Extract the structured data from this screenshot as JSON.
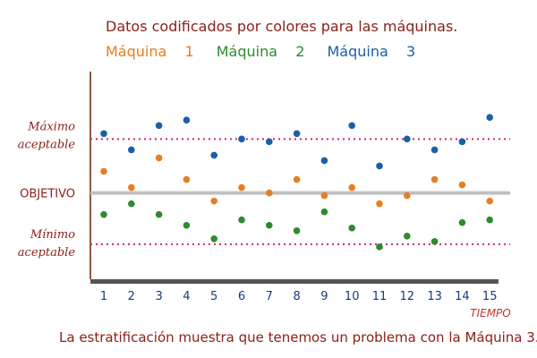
{
  "chart_data": {
    "type": "scatter",
    "title": "Datos codificados por colores para las máquinas.",
    "caption": "La estratificación muestra que tenemos un problema con la Máquina 3.",
    "xlabel": "TIEMPO",
    "x": [
      1,
      2,
      3,
      4,
      5,
      6,
      7,
      8,
      9,
      10,
      11,
      12,
      13,
      14,
      15
    ],
    "reference_lines": {
      "max_label_1": "Máximo",
      "max_label_2": "aceptable",
      "max_value": 70,
      "target_label": "OBJETIVO",
      "target_value": 50,
      "min_label_1": "Mínimo",
      "min_label_2": "aceptable",
      "min_value": 31
    },
    "ylim": [
      18,
      95
    ],
    "series": [
      {
        "name": "Máquina 1",
        "legend_suffix": "1",
        "legend_prefix": "Máquina",
        "color": "#e67e22",
        "values": [
          58,
          52,
          63,
          55,
          47,
          52,
          50,
          55,
          49,
          52,
          46,
          49,
          55,
          53,
          47
        ]
      },
      {
        "name": "Máquina 2",
        "legend_suffix": "2",
        "legend_prefix": "Máquina",
        "color": "#2e8b2e",
        "values": [
          42,
          46,
          42,
          38,
          33,
          40,
          38,
          36,
          43,
          37,
          30,
          34,
          32,
          39,
          40
        ]
      },
      {
        "name": "Máquina 3",
        "legend_suffix": "3",
        "legend_prefix": "Máquina",
        "color": "#1a5fa8",
        "values": [
          72,
          66,
          75,
          77,
          64,
          70,
          69,
          72,
          62,
          75,
          60,
          70,
          66,
          69,
          78
        ]
      }
    ]
  }
}
